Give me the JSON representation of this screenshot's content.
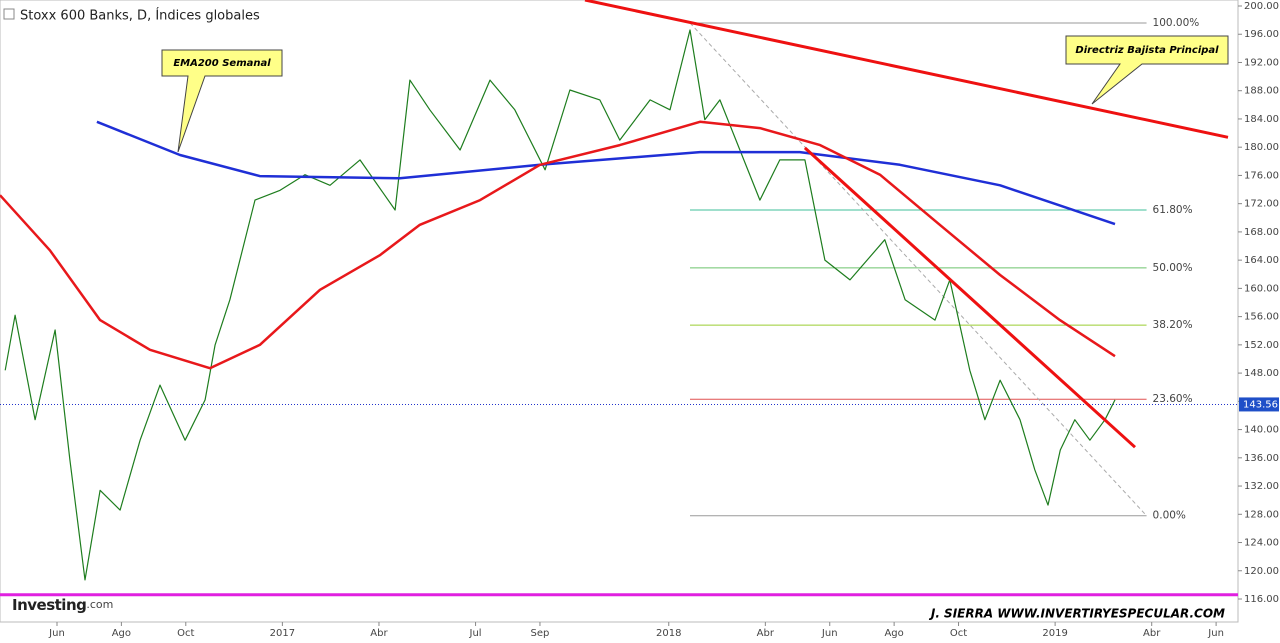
{
  "chart_data": {
    "type": "line",
    "title": "Stoxx 600 Banks, D, Índices globales",
    "xlim": [
      -1.77,
      36.68
    ],
    "xticks": [
      {
        "value": 0,
        "label": "Jun"
      },
      {
        "value": 2,
        "label": "Ago"
      },
      {
        "value": 4,
        "label": "Oct"
      },
      {
        "value": 7,
        "label": "2017"
      },
      {
        "value": 10,
        "label": "Abr"
      },
      {
        "value": 13,
        "label": "Jul"
      },
      {
        "value": 15,
        "label": "Sep"
      },
      {
        "value": 19,
        "label": "2018"
      },
      {
        "value": 22,
        "label": "Abr"
      },
      {
        "value": 24,
        "label": "Jun"
      },
      {
        "value": 26,
        "label": "Ago"
      },
      {
        "value": 28,
        "label": "Oct"
      },
      {
        "value": 31,
        "label": "2019"
      },
      {
        "value": 34,
        "label": "Abr"
      },
      {
        "value": 36,
        "label": "Jun"
      }
    ],
    "ylim": [
      116,
      200
    ],
    "yticks": [
      {
        "value": 116,
        "label": "116.00"
      },
      {
        "value": 120,
        "label": "120.00"
      },
      {
        "value": 124,
        "label": "124.00"
      },
      {
        "value": 128,
        "label": "128.00"
      },
      {
        "value": 132,
        "label": "132.00"
      },
      {
        "value": 136,
        "label": "136.00"
      },
      {
        "value": 140,
        "label": "140.00"
      },
      {
        "value": 144,
        "label": "144.00"
      },
      {
        "value": 148,
        "label": "148.00"
      },
      {
        "value": 152,
        "label": "152.00"
      },
      {
        "value": 156,
        "label": "156.00"
      },
      {
        "value": 160,
        "label": "160.00"
      },
      {
        "value": 164,
        "label": "164.00"
      },
      {
        "value": 168,
        "label": "168.00"
      },
      {
        "value": 172,
        "label": "172.00"
      },
      {
        "value": 176,
        "label": "176.00"
      },
      {
        "value": 180,
        "label": "180.00"
      },
      {
        "value": 184,
        "label": "184.00"
      },
      {
        "value": 188,
        "label": "188.00"
      },
      {
        "value": 192,
        "label": "192.00"
      },
      {
        "value": 196,
        "label": "196.00"
      },
      {
        "value": 200,
        "label": "200.00"
      }
    ],
    "series": [
      {
        "color": "#1e7d1e",
        "width": 1.2,
        "x": [
          -1.61,
          -1.3,
          -0.68,
          -0.06,
          0.4,
          0.87,
          1.34,
          1.96,
          2.58,
          3.2,
          3.98,
          4.6,
          4.91,
          5.37,
          6.15,
          6.93,
          7.7,
          8.48,
          9.41,
          10.5,
          10.96,
          11.58,
          12.52,
          13.45,
          14.22,
          15.16,
          15.93,
          16.86,
          17.48,
          18.42,
          19.04,
          19.66,
          20.12,
          20.59,
          21.21,
          21.83,
          22.45,
          23.23,
          23.85,
          24.63,
          25.71,
          26.34,
          27.27,
          27.73,
          28.35,
          28.82,
          29.29,
          29.91,
          30.37,
          30.78,
          31.16,
          31.61,
          32.08,
          32.55,
          32.86
        ],
        "values": [
          148.4,
          156.2,
          141.4,
          154.1,
          135.7,
          118.7,
          131.4,
          128.6,
          138.5,
          146.3,
          138.5,
          144.2,
          152,
          158.4,
          172.5,
          173.9,
          176.1,
          174.6,
          178.2,
          171.1,
          189.5,
          185.3,
          179.6,
          189.5,
          185.3,
          176.8,
          188.1,
          186.7,
          181,
          186.7,
          185.3,
          196.6,
          183.9,
          186.7,
          179.6,
          172.5,
          178.2,
          178.2,
          164,
          161.2,
          166.9,
          158.4,
          155.5,
          161.2,
          148.4,
          141.4,
          147,
          141.4,
          134.3,
          129.3,
          137.1,
          141.4,
          138.5,
          141.4,
          144.2
        ]
      },
      {
        "color": "#1f2fd6",
        "width": 2.5,
        "x": [
          1.24,
          3.82,
          6.3,
          10.65,
          15.0,
          19.97,
          23.07,
          26.18,
          29.29,
          32.86
        ],
        "values": [
          183.6,
          178.9,
          175.9,
          175.6,
          177.5,
          179.3,
          179.3,
          177.5,
          174.6,
          169.1
        ]
      },
      {
        "color": "#e8181b",
        "width": 2.5,
        "x": [
          -1.77,
          -0.22,
          1.34,
          2.89,
          4.75,
          6.3,
          8.17,
          10.03,
          11.27,
          13.14,
          15.0,
          17.48,
          19.97,
          21.83,
          23.7,
          25.56,
          27.42,
          29.29,
          31.15,
          32.86
        ],
        "values": [
          173.2,
          165.4,
          155.5,
          151.3,
          148.7,
          152,
          159.8,
          164.7,
          169,
          172.5,
          177.5,
          180.3,
          183.6,
          182.7,
          180.3,
          176.1,
          169,
          161.9,
          155.5,
          150.4
        ]
      }
    ],
    "trendlines": [
      {
        "color": "#ee1111",
        "x": [
          16.4,
          36.37
        ],
        "values": [
          200.85,
          181.4
        ]
      },
      {
        "color": "#ee1111",
        "x": [
          23.23,
          33.48
        ],
        "values": [
          179.9,
          137.5
        ]
      },
      {
        "color": "#e020e0",
        "x": [
          -1.77,
          36.68
        ],
        "values": [
          116.6,
          116.6
        ]
      }
    ],
    "fib_levels": [
      {
        "label": "100.00%",
        "value": 197.6,
        "color": "#9a9a9a"
      },
      {
        "label": "61.80%",
        "value": 171.1,
        "color": "#3fbf9a"
      },
      {
        "label": "50.00%",
        "value": 162.9,
        "color": "#6cc36c"
      },
      {
        "label": "38.20%",
        "value": 154.8,
        "color": "#9acd32"
      },
      {
        "label": "23.60%",
        "value": 144.3,
        "color": "#e05050"
      },
      {
        "label": "0.00%",
        "value": 127.8,
        "color": "#9a9a9a"
      }
    ],
    "fib_x": [
      19.66,
      33.84
    ],
    "last_price": {
      "value": 143.56,
      "label": "143.56"
    },
    "annotations": [
      "EMA200 Semanal",
      "Directriz Bajista Principal"
    ],
    "source": "Investing",
    "source_suffix": ".com",
    "signature": "J. SIERRA   WWW.INVERTIRYESPECULAR.COM"
  }
}
